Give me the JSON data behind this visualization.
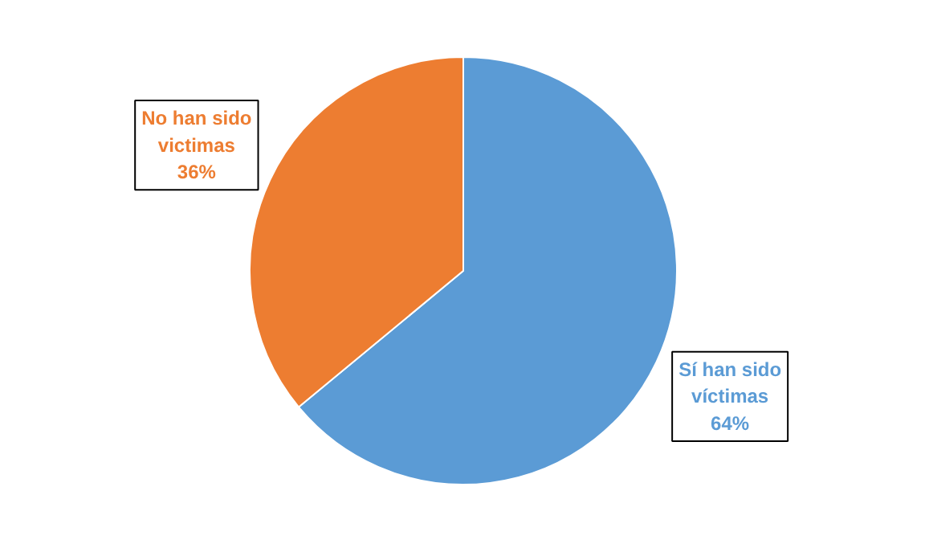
{
  "chart_data": {
    "type": "pie",
    "categories": [
      "Sí han sido víctimas",
      "No han sido victimas"
    ],
    "values": [
      64,
      36
    ],
    "colors": [
      "#5b9bd5",
      "#ed7d31"
    ],
    "value_labels": [
      "64%",
      "36%"
    ]
  }
}
